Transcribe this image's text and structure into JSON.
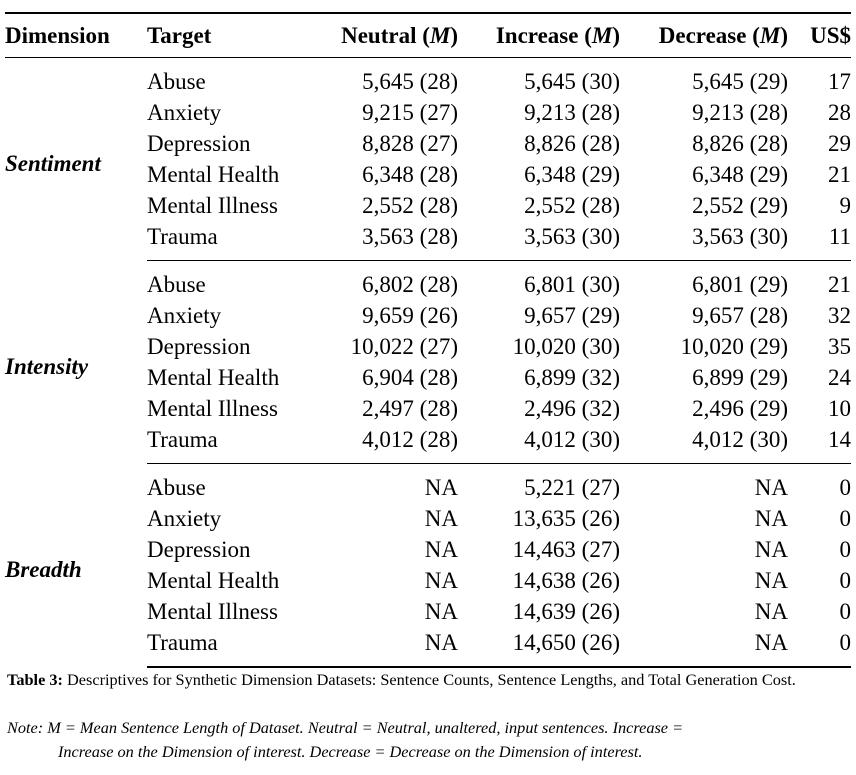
{
  "table": {
    "headers": {
      "dimension": "Dimension",
      "target": "Target",
      "neutral_label": "Neutral (",
      "neutral_m": "M",
      "neutral_close": ")",
      "increase_label": "Increase (",
      "increase_m": "M",
      "increase_close": ")",
      "decrease_label": "Decrease (",
      "decrease_m": "M",
      "decrease_close": ")",
      "cost": "US$"
    },
    "groups": [
      {
        "dimension": "Sentiment",
        "rows": [
          {
            "target": "Abuse",
            "neutral": "5,645 (28)",
            "increase": "5,645 (30)",
            "decrease": "5,645 (29)",
            "cost": "17"
          },
          {
            "target": "Anxiety",
            "neutral": "9,215 (27)",
            "increase": "9,213 (28)",
            "decrease": "9,213 (28)",
            "cost": "28"
          },
          {
            "target": "Depression",
            "neutral": "8,828 (27)",
            "increase": "8,826 (28)",
            "decrease": "8,826 (28)",
            "cost": "29"
          },
          {
            "target": "Mental Health",
            "neutral": "6,348 (28)",
            "increase": "6,348 (29)",
            "decrease": "6,348 (29)",
            "cost": "21"
          },
          {
            "target": "Mental Illness",
            "neutral": "2,552 (28)",
            "increase": "2,552 (28)",
            "decrease": "2,552 (29)",
            "cost": "9"
          },
          {
            "target": "Trauma",
            "neutral": "3,563 (28)",
            "increase": "3,563 (30)",
            "decrease": "3,563 (30)",
            "cost": "11"
          }
        ]
      },
      {
        "dimension": "Intensity",
        "rows": [
          {
            "target": "Abuse",
            "neutral": "6,802 (28)",
            "increase": "6,801 (30)",
            "decrease": "6,801 (29)",
            "cost": "21"
          },
          {
            "target": "Anxiety",
            "neutral": "9,659 (26)",
            "increase": "9,657 (29)",
            "decrease": "9,657 (28)",
            "cost": "32"
          },
          {
            "target": "Depression",
            "neutral": "10,022 (27)",
            "increase": "10,020 (30)",
            "decrease": "10,020 (29)",
            "cost": "35"
          },
          {
            "target": "Mental Health",
            "neutral": "6,904 (28)",
            "increase": "6,899 (32)",
            "decrease": "6,899 (29)",
            "cost": "24"
          },
          {
            "target": "Mental Illness",
            "neutral": "2,497 (28)",
            "increase": "2,496 (32)",
            "decrease": "2,496 (29)",
            "cost": "10"
          },
          {
            "target": "Trauma",
            "neutral": "4,012 (28)",
            "increase": "4,012 (30)",
            "decrease": "4,012 (30)",
            "cost": "14"
          }
        ]
      },
      {
        "dimension": "Breadth",
        "rows": [
          {
            "target": "Abuse",
            "neutral": "NA",
            "increase": "5,221 (27)",
            "decrease": "NA",
            "cost": "0"
          },
          {
            "target": "Anxiety",
            "neutral": "NA",
            "increase": "13,635 (26)",
            "decrease": "NA",
            "cost": "0"
          },
          {
            "target": "Depression",
            "neutral": "NA",
            "increase": "14,463 (27)",
            "decrease": "NA",
            "cost": "0"
          },
          {
            "target": "Mental Health",
            "neutral": "NA",
            "increase": "14,638 (26)",
            "decrease": "NA",
            "cost": "0"
          },
          {
            "target": "Mental Illness",
            "neutral": "NA",
            "increase": "14,639 (26)",
            "decrease": "NA",
            "cost": "0"
          },
          {
            "target": "Trauma",
            "neutral": "NA",
            "increase": "14,650 (26)",
            "decrease": "NA",
            "cost": "0"
          }
        ]
      }
    ]
  },
  "caption": {
    "label": "Table 3:",
    "text": " Descriptives for Synthetic Dimension Datasets: Sentence Counts, Sentence Lengths, and Total Generation Cost."
  },
  "note": {
    "line1": "Note: M = Mean Sentence Length of Dataset. Neutral = Neutral, unaltered, input sentences. Increase =",
    "line2": "Increase on the Dimension of interest. Decrease = Decrease on the Dimension of interest."
  }
}
